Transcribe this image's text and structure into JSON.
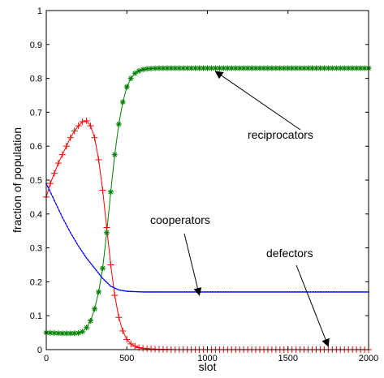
{
  "chart_data": {
    "type": "line",
    "title": "",
    "xlabel": "slot",
    "ylabel": "fraction of population",
    "xlim": [
      0,
      2000
    ],
    "ylim": [
      0,
      1
    ],
    "xticks": [
      0,
      500,
      1000,
      1500,
      2000
    ],
    "xtick_labels": [
      "0",
      "500",
      "1000",
      "1500",
      "2000"
    ],
    "yticks": [
      0,
      0.1,
      0.2,
      0.3,
      0.4,
      0.5,
      0.6,
      0.7,
      0.8,
      0.9,
      1
    ],
    "ytick_labels": [
      "0",
      "0.1",
      "0.2",
      "0.3",
      "0.4",
      "0.5",
      "0.6",
      "0.7",
      "0.8",
      "0.9",
      "1"
    ],
    "grid": false,
    "legend": "none",
    "series": [
      {
        "name": "reciprocators",
        "color": "#008000",
        "marker": "star",
        "x": [
          0,
          50,
          100,
          150,
          200,
          225,
          250,
          275,
          300,
          325,
          350,
          375,
          400,
          425,
          450,
          475,
          500,
          525,
          550,
          575,
          600,
          625,
          650,
          700,
          750,
          800,
          1000,
          1500,
          2000
        ],
        "y": [
          0.05,
          0.049,
          0.048,
          0.048,
          0.049,
          0.053,
          0.065,
          0.085,
          0.12,
          0.17,
          0.24,
          0.345,
          0.465,
          0.575,
          0.665,
          0.73,
          0.775,
          0.8,
          0.815,
          0.822,
          0.826,
          0.828,
          0.829,
          0.83,
          0.83,
          0.83,
          0.83,
          0.83,
          0.83
        ]
      },
      {
        "name": "defectors",
        "color": "#ff0000",
        "marker": "plus",
        "x": [
          0,
          25,
          50,
          75,
          100,
          125,
          150,
          175,
          200,
          225,
          250,
          275,
          300,
          325,
          350,
          375,
          400,
          425,
          450,
          475,
          500,
          525,
          550,
          575,
          600,
          650,
          700,
          800,
          1000,
          1500,
          2000
        ],
        "y": [
          0.45,
          0.49,
          0.52,
          0.55,
          0.575,
          0.6,
          0.625,
          0.645,
          0.66,
          0.672,
          0.675,
          0.66,
          0.625,
          0.56,
          0.47,
          0.36,
          0.25,
          0.16,
          0.095,
          0.055,
          0.03,
          0.017,
          0.01,
          0.006,
          0.004,
          0.002,
          0.001,
          0,
          0,
          0,
          0
        ]
      },
      {
        "name": "cooperators",
        "color": "#0000ff",
        "marker": "dot",
        "x": [
          0,
          50,
          100,
          150,
          200,
          250,
          300,
          350,
          400,
          450,
          500,
          600,
          700,
          800,
          1000,
          1500,
          2000
        ],
        "y": [
          0.49,
          0.44,
          0.39,
          0.345,
          0.305,
          0.27,
          0.24,
          0.21,
          0.187,
          0.176,
          0.172,
          0.17,
          0.17,
          0.17,
          0.17,
          0.17,
          0.17
        ]
      }
    ],
    "annotations": [
      {
        "text": "reciprocators",
        "target_x": 1050,
        "target_y": 0.83
      },
      {
        "text": "cooperators",
        "target_x": 950,
        "target_y": 0.17
      },
      {
        "text": "defectors",
        "target_x": 1750,
        "target_y": 0.0
      }
    ]
  }
}
